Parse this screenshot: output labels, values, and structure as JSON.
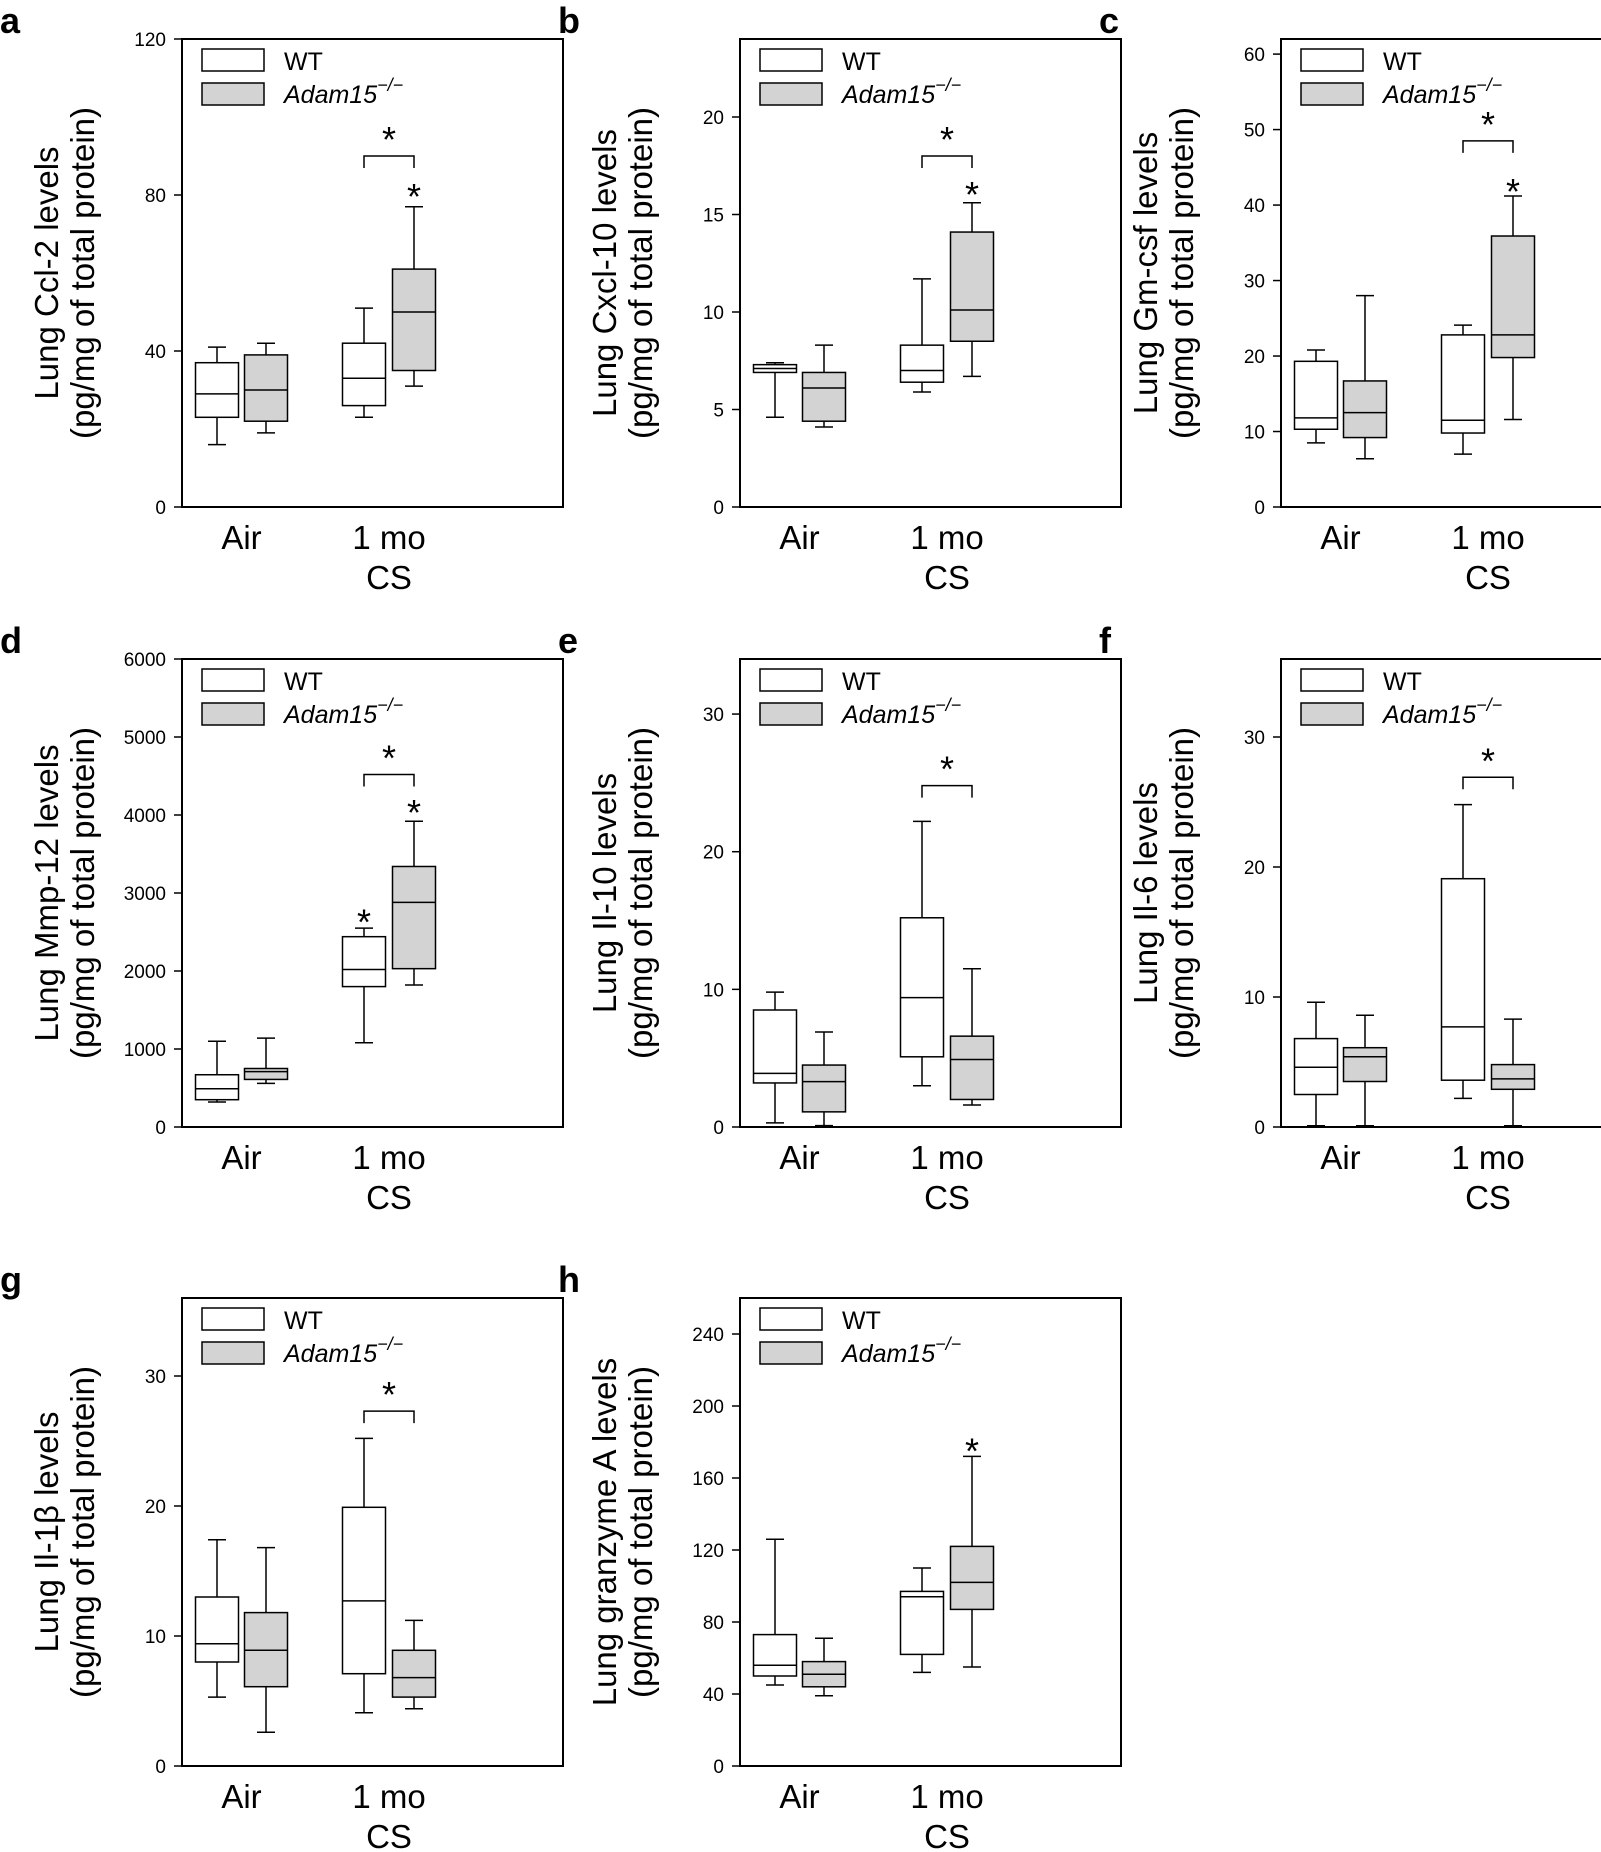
{
  "colors": {
    "wt": "#ffffff",
    "ko": "#d3d3d3",
    "stroke": "#000000"
  },
  "chart_data": [
    {
      "type": "box",
      "letter": "a",
      "ylabel": [
        "Lung Ccl-2 levels",
        "(pg/mg of total protein)"
      ],
      "ylim": [
        0,
        120
      ],
      "yticks": [
        0,
        40,
        80,
        120
      ],
      "categories": [
        "Air",
        "1 mo",
        "CS"
      ],
      "legend": {
        "wt": "WT",
        "ko_base": "Adam15",
        "ko_sup": "−/−"
      },
      "series": [
        {
          "name": "WT",
          "boxes": [
            {
              "category": "Air",
              "whisker_low": 16,
              "q1": 23,
              "median": 29,
              "q3": 37,
              "whisker_high": 41
            },
            {
              "category": "1 mo CS",
              "whisker_low": 23,
              "q1": 26,
              "median": 33,
              "q3": 42,
              "whisker_high": 51
            }
          ]
        },
        {
          "name": "Adam15−/−",
          "boxes": [
            {
              "category": "Air",
              "whisker_low": 19,
              "q1": 22,
              "median": 30,
              "q3": 39,
              "whisker_high": 42
            },
            {
              "category": "1 mo CS",
              "whisker_low": 31,
              "q1": 35,
              "median": 50,
              "q3": 61,
              "whisker_high": 77
            }
          ]
        }
      ],
      "annotations": [
        {
          "kind": "star",
          "group": 1,
          "series": 1,
          "value": 81,
          "label": "*"
        },
        {
          "kind": "bracket",
          "group": 1,
          "value": 90,
          "label": "*"
        }
      ]
    },
    {
      "type": "box",
      "letter": "b",
      "ylabel": [
        "Lung Cxcl-10 levels",
        "(pg/mg of total protein)"
      ],
      "ylim": [
        0,
        24
      ],
      "yticks": [
        0,
        5,
        10,
        15,
        20
      ],
      "categories": [
        "Air",
        "1 mo",
        "CS"
      ],
      "legend": {
        "wt": "WT",
        "ko_base": "Adam15",
        "ko_sup": "−/−"
      },
      "series": [
        {
          "name": "WT",
          "boxes": [
            {
              "category": "Air",
              "whisker_low": 4.6,
              "q1": 6.9,
              "median": 7.1,
              "q3": 7.3,
              "whisker_high": 7.4
            },
            {
              "category": "1 mo CS",
              "whisker_low": 5.9,
              "q1": 6.4,
              "median": 7.0,
              "q3": 8.3,
              "whisker_high": 11.7
            }
          ]
        },
        {
          "name": "Adam15−/−",
          "boxes": [
            {
              "category": "Air",
              "whisker_low": 4.1,
              "q1": 4.4,
              "median": 6.1,
              "q3": 6.9,
              "whisker_high": 8.3
            },
            {
              "category": "1 mo CS",
              "whisker_low": 6.7,
              "q1": 8.5,
              "median": 10.1,
              "q3": 14.1,
              "whisker_high": 15.6
            }
          ]
        }
      ],
      "annotations": [
        {
          "kind": "star",
          "group": 1,
          "series": 1,
          "value": 16.3,
          "label": "*"
        },
        {
          "kind": "bracket",
          "group": 1,
          "value": 18.0,
          "label": "*"
        }
      ]
    },
    {
      "type": "box",
      "letter": "c",
      "ylabel": [
        "Lung Gm-csf levels",
        "(pg/mg of total protein)"
      ],
      "ylim": [
        0,
        62
      ],
      "yticks": [
        0,
        10,
        20,
        30,
        40,
        50,
        60
      ],
      "categories": [
        "Air",
        "1 mo",
        "CS"
      ],
      "legend": {
        "wt": "WT",
        "ko_base": "Adam15",
        "ko_sup": "−/−"
      },
      "series": [
        {
          "name": "WT",
          "boxes": [
            {
              "category": "Air",
              "whisker_low": 8.5,
              "q1": 10.3,
              "median": 11.8,
              "q3": 19.3,
              "whisker_high": 20.8
            },
            {
              "category": "1 mo CS",
              "whisker_low": 7.0,
              "q1": 9.8,
              "median": 11.5,
              "q3": 22.8,
              "whisker_high": 24.1
            }
          ]
        },
        {
          "name": "Adam15−/−",
          "boxes": [
            {
              "category": "Air",
              "whisker_low": 6.4,
              "q1": 9.2,
              "median": 12.5,
              "q3": 16.7,
              "whisker_high": 28.0
            },
            {
              "category": "1 mo CS",
              "whisker_low": 11.6,
              "q1": 19.8,
              "median": 22.8,
              "q3": 35.9,
              "whisker_high": 41.2
            }
          ]
        }
      ],
      "annotations": [
        {
          "kind": "star",
          "group": 1,
          "series": 1,
          "value": 42.5,
          "label": "*"
        },
        {
          "kind": "bracket",
          "group": 1,
          "value": 48.5,
          "label": "*"
        }
      ]
    },
    {
      "type": "box",
      "letter": "d",
      "ylabel": [
        "Lung Mmp-12 levels",
        "(pg/mg of total protein)"
      ],
      "ylim": [
        0,
        6000
      ],
      "yticks": [
        0,
        1000,
        2000,
        3000,
        4000,
        5000,
        6000
      ],
      "categories": [
        "Air",
        "1 mo",
        "CS"
      ],
      "legend": {
        "wt": "WT",
        "ko_base": "Adam15",
        "ko_sup": "−/−"
      },
      "series": [
        {
          "name": "WT",
          "boxes": [
            {
              "category": "Air",
              "whisker_low": 320,
              "q1": 350,
              "median": 490,
              "q3": 670,
              "whisker_high": 1100
            },
            {
              "category": "1 mo CS",
              "whisker_low": 1080,
              "q1": 1800,
              "median": 2020,
              "q3": 2440,
              "whisker_high": 2550
            }
          ]
        },
        {
          "name": "Adam15−/−",
          "boxes": [
            {
              "category": "Air",
              "whisker_low": 560,
              "q1": 610,
              "median": 710,
              "q3": 750,
              "whisker_high": 1140
            },
            {
              "category": "1 mo CS",
              "whisker_low": 1820,
              "q1": 2030,
              "median": 2880,
              "q3": 3340,
              "whisker_high": 3920
            }
          ]
        }
      ],
      "annotations": [
        {
          "kind": "star",
          "group": 1,
          "series": 0,
          "value": 2700,
          "label": "*"
        },
        {
          "kind": "star",
          "group": 1,
          "series": 1,
          "value": 4100,
          "label": "*"
        },
        {
          "kind": "bracket",
          "group": 1,
          "value": 4520,
          "label": "*"
        }
      ]
    },
    {
      "type": "box",
      "letter": "e",
      "ylabel": [
        "Lung Il-10 levels",
        "(pg/mg of total protein)"
      ],
      "ylim": [
        0,
        34
      ],
      "yticks": [
        0,
        10,
        20,
        30
      ],
      "categories": [
        "Air",
        "1 mo",
        "CS"
      ],
      "legend": {
        "wt": "WT",
        "ko_base": "Adam15",
        "ko_sup": "−/−"
      },
      "series": [
        {
          "name": "WT",
          "boxes": [
            {
              "category": "Air",
              "whisker_low": 0.3,
              "q1": 3.2,
              "median": 3.9,
              "q3": 8.5,
              "whisker_high": 9.8
            },
            {
              "category": "1 mo CS",
              "whisker_low": 3.0,
              "q1": 5.1,
              "median": 9.4,
              "q3": 15.2,
              "whisker_high": 22.2
            }
          ]
        },
        {
          "name": "Adam15−/−",
          "boxes": [
            {
              "category": "Air",
              "whisker_low": 0.1,
              "q1": 1.1,
              "median": 3.3,
              "q3": 4.5,
              "whisker_high": 6.9
            },
            {
              "category": "1 mo CS",
              "whisker_low": 1.6,
              "q1": 2.0,
              "median": 4.9,
              "q3": 6.6,
              "whisker_high": 11.5
            }
          ]
        }
      ],
      "annotations": [
        {
          "kind": "bracket",
          "group": 1,
          "value": 24.8,
          "label": "*"
        }
      ]
    },
    {
      "type": "box",
      "letter": "f",
      "ylabel": [
        "Lung Il-6 levels",
        "(pg/mg of total protein)"
      ],
      "ylim": [
        0,
        36
      ],
      "yticks": [
        0,
        10,
        20,
        30
      ],
      "categories": [
        "Air",
        "1 mo",
        "CS"
      ],
      "legend": {
        "wt": "WT",
        "ko_base": "Adam15",
        "ko_sup": "−/−"
      },
      "series": [
        {
          "name": "WT",
          "boxes": [
            {
              "category": "Air",
              "whisker_low": 0.1,
              "q1": 2.5,
              "median": 4.6,
              "q3": 6.8,
              "whisker_high": 9.6
            },
            {
              "category": "1 mo CS",
              "whisker_low": 2.2,
              "q1": 3.6,
              "median": 7.7,
              "q3": 19.1,
              "whisker_high": 24.8
            }
          ]
        },
        {
          "name": "Adam15−/−",
          "boxes": [
            {
              "category": "Air",
              "whisker_low": 0.1,
              "q1": 3.5,
              "median": 5.4,
              "q3": 6.1,
              "whisker_high": 8.6
            },
            {
              "category": "1 mo CS",
              "whisker_low": 0.1,
              "q1": 2.9,
              "median": 3.7,
              "q3": 4.8,
              "whisker_high": 8.3
            }
          ]
        }
      ],
      "annotations": [
        {
          "kind": "bracket",
          "group": 1,
          "value": 26.9,
          "label": "*"
        }
      ]
    },
    {
      "type": "box",
      "letter": "g",
      "ylabel": [
        "Lung Il-1β levels",
        "(pg/mg of total protein)"
      ],
      "ylim": [
        0,
        36
      ],
      "yticks": [
        0,
        10,
        20,
        30
      ],
      "categories": [
        "Air",
        "1 mo",
        "CS"
      ],
      "legend": {
        "wt": "WT",
        "ko_base": "Adam15",
        "ko_sup": "−/−"
      },
      "series": [
        {
          "name": "WT",
          "boxes": [
            {
              "category": "Air",
              "whisker_low": 5.3,
              "q1": 8.0,
              "median": 9.4,
              "q3": 13.0,
              "whisker_high": 17.4
            },
            {
              "category": "1 mo CS",
              "whisker_low": 4.1,
              "q1": 7.1,
              "median": 12.7,
              "q3": 19.9,
              "whisker_high": 25.2
            }
          ]
        },
        {
          "name": "Adam15−/−",
          "boxes": [
            {
              "category": "Air",
              "whisker_low": 2.6,
              "q1": 6.1,
              "median": 8.9,
              "q3": 11.8,
              "whisker_high": 16.8
            },
            {
              "category": "1 mo CS",
              "whisker_low": 4.4,
              "q1": 5.3,
              "median": 6.8,
              "q3": 8.9,
              "whisker_high": 11.2
            }
          ]
        }
      ],
      "annotations": [
        {
          "kind": "bracket",
          "group": 1,
          "value": 27.3,
          "label": "*"
        }
      ]
    },
    {
      "type": "box",
      "letter": "h",
      "ylabel": [
        "Lung granzyme A levels",
        "(pg/mg of total protein)"
      ],
      "ylim": [
        0,
        260
      ],
      "yticks": [
        0,
        40,
        80,
        120,
        160,
        200,
        240
      ],
      "categories": [
        "Air",
        "1 mo",
        "CS"
      ],
      "legend": {
        "wt": "WT",
        "ko_base": "Adam15",
        "ko_sup": "−/−"
      },
      "series": [
        {
          "name": "WT",
          "boxes": [
            {
              "category": "Air",
              "whisker_low": 45,
              "q1": 50,
              "median": 56,
              "q3": 73,
              "whisker_high": 126
            },
            {
              "category": "1 mo CS",
              "whisker_low": 52,
              "q1": 62,
              "median": 94,
              "q3": 97,
              "whisker_high": 110
            }
          ]
        },
        {
          "name": "Adam15−/−",
          "boxes": [
            {
              "category": "Air",
              "whisker_low": 39,
              "q1": 44,
              "median": 51,
              "q3": 58,
              "whisker_high": 71
            },
            {
              "category": "1 mo CS",
              "whisker_low": 55,
              "q1": 87,
              "median": 102,
              "q3": 122,
              "whisker_high": 172
            }
          ]
        }
      ],
      "annotations": [
        {
          "kind": "star",
          "group": 1,
          "series": 1,
          "value": 178,
          "label": "*"
        }
      ]
    }
  ]
}
